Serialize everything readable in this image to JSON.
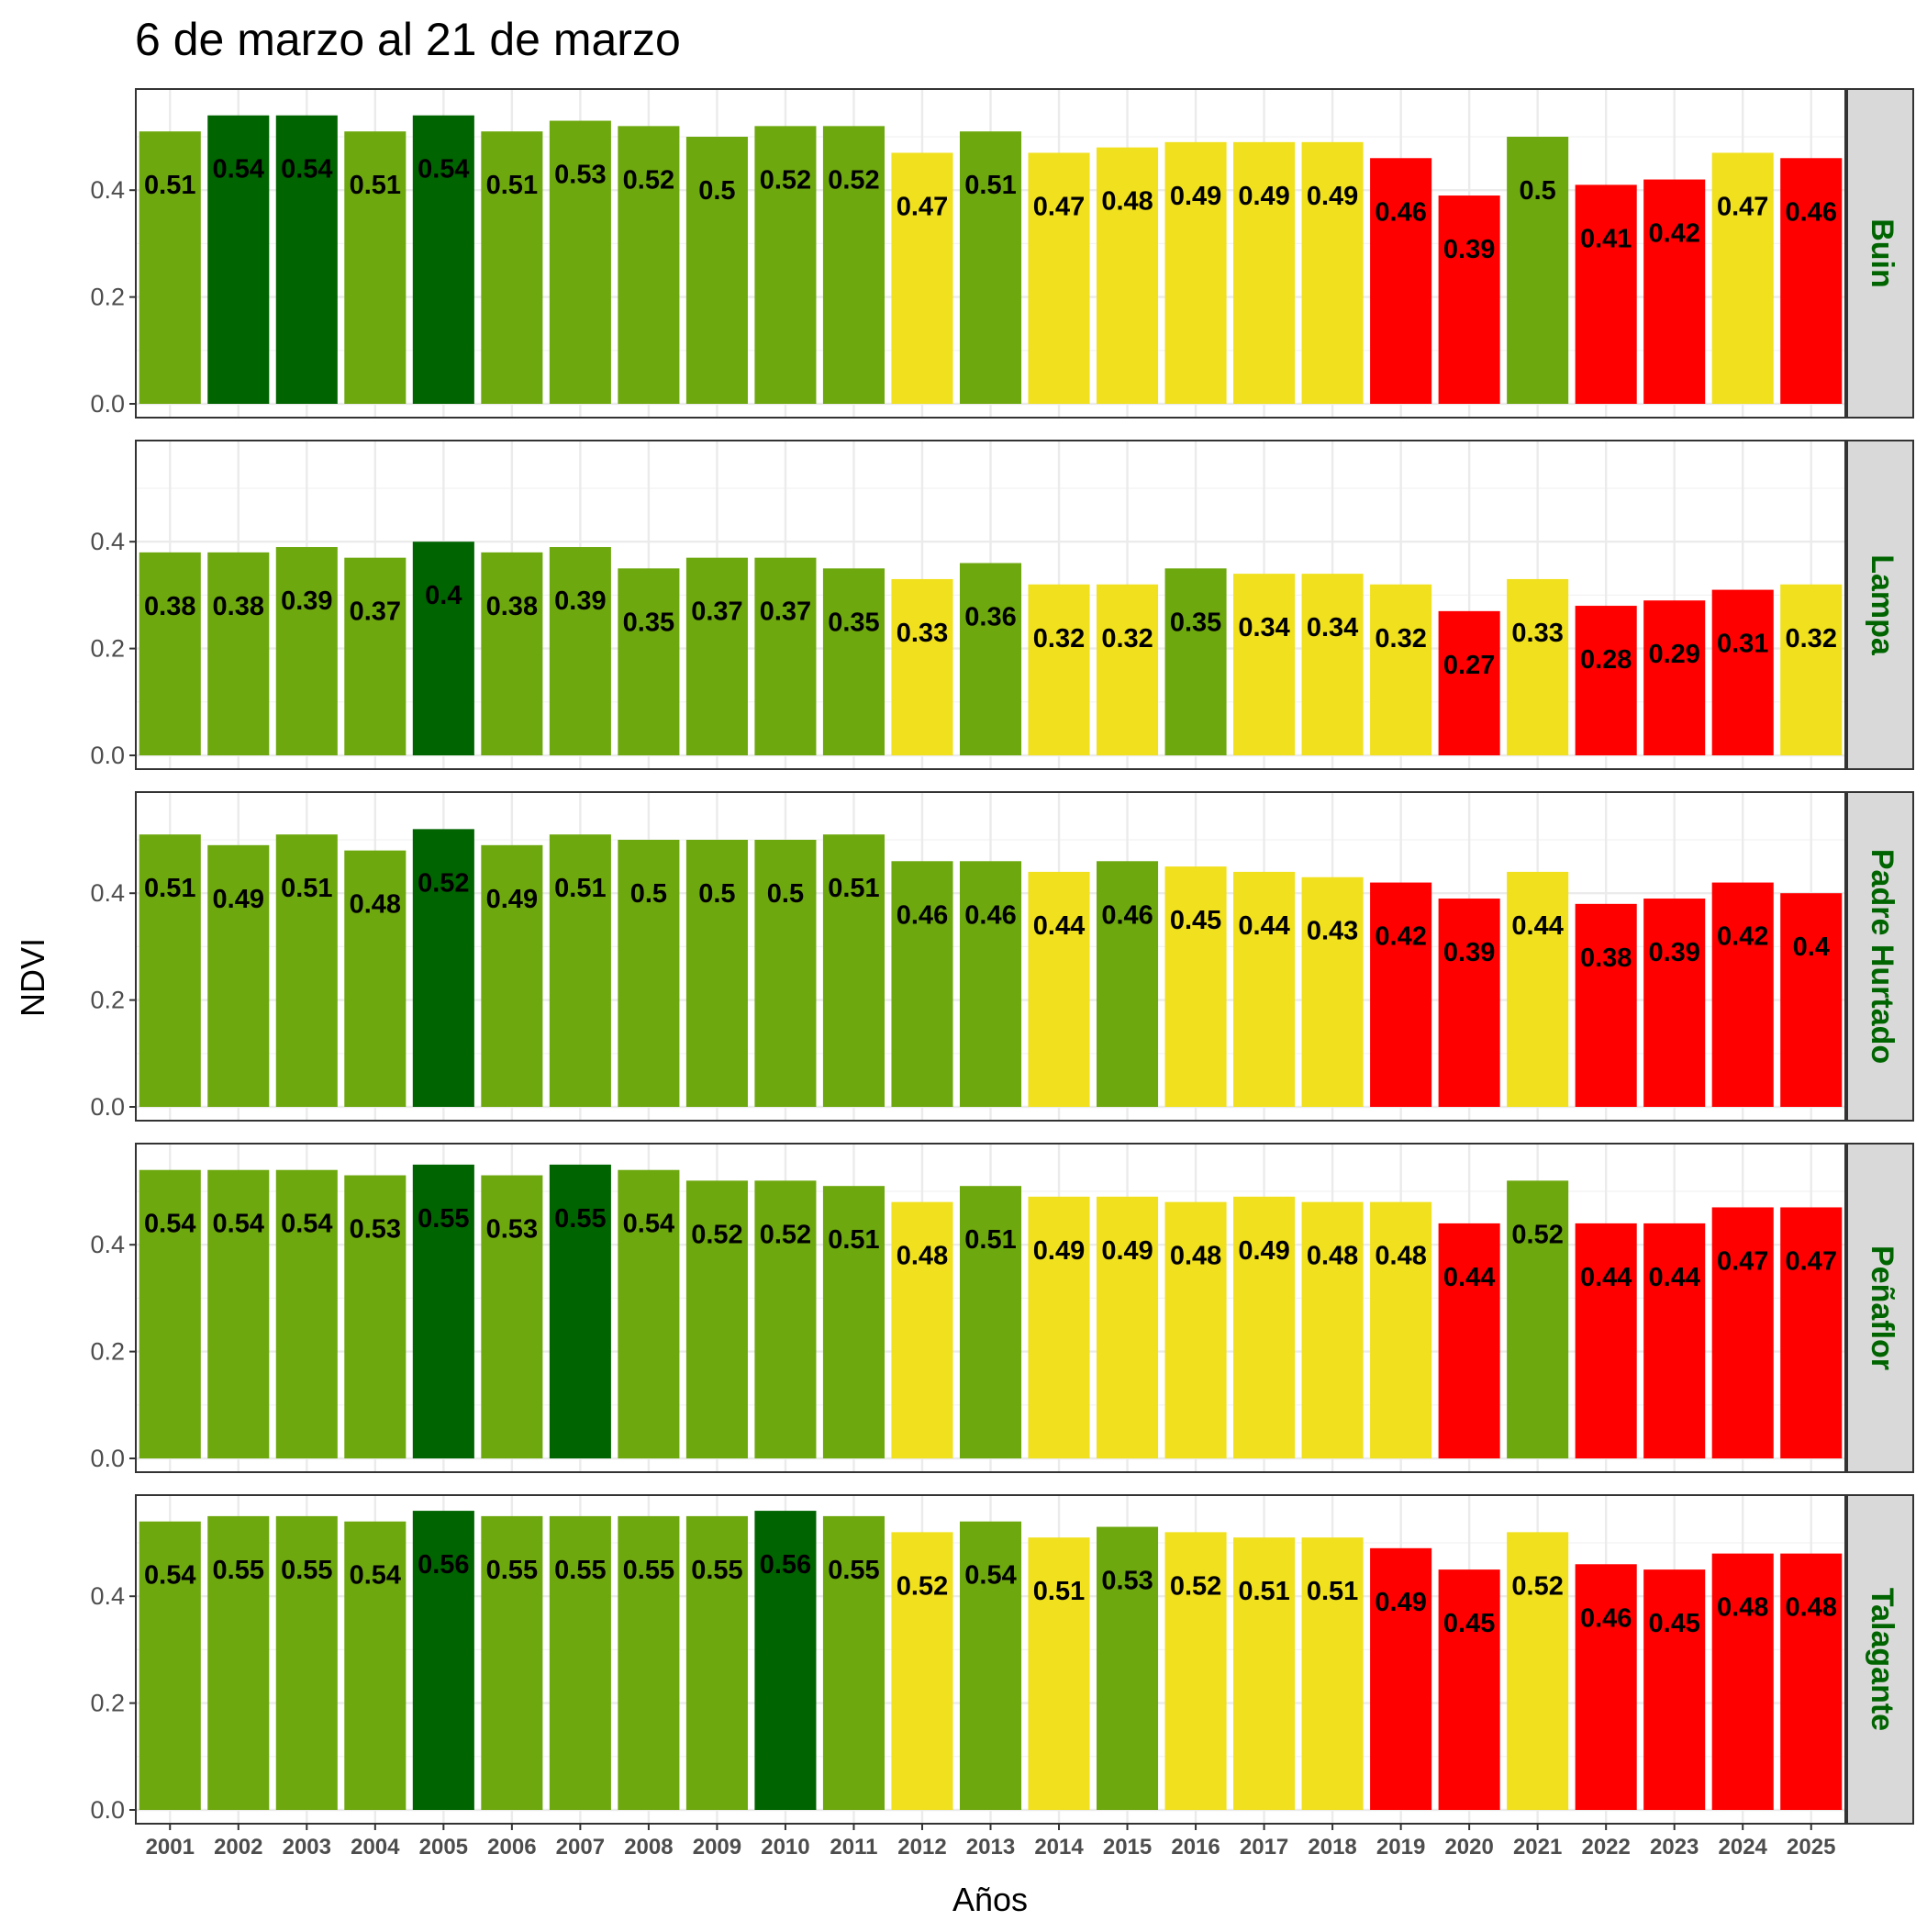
{
  "chart_data": {
    "type": "bar",
    "title": "6 de marzo al 21 de marzo",
    "xlabel": "Años",
    "ylabel": "NDVI",
    "ylim": [
      0,
      0.58
    ],
    "y_ticks": [
      "0.0",
      "0.2",
      "0.4"
    ],
    "grid": true,
    "categories": [
      "2001",
      "2002",
      "2003",
      "2004",
      "2005",
      "2006",
      "2007",
      "2008",
      "2009",
      "2010",
      "2011",
      "2012",
      "2013",
      "2014",
      "2015",
      "2016",
      "2017",
      "2018",
      "2019",
      "2020",
      "2021",
      "2022",
      "2023",
      "2024",
      "2025"
    ],
    "colors": {
      "G": "#006400",
      "L": "#6ea80f",
      "Y": "#f0e01e",
      "R": "#ff0000",
      "strip_bg": "#d9d9d9",
      "strip_text": "#006400"
    },
    "panels": [
      {
        "name": "Buin",
        "values": [
          0.51,
          0.54,
          0.54,
          0.51,
          0.54,
          0.51,
          0.53,
          0.52,
          0.5,
          0.52,
          0.52,
          0.47,
          0.51,
          0.47,
          0.48,
          0.49,
          0.49,
          0.49,
          0.46,
          0.39,
          0.5,
          0.41,
          0.42,
          0.47,
          0.46
        ],
        "color_class": [
          "L",
          "G",
          "G",
          "L",
          "G",
          "L",
          "L",
          "L",
          "L",
          "L",
          "L",
          "Y",
          "L",
          "Y",
          "Y",
          "Y",
          "Y",
          "Y",
          "R",
          "R",
          "L",
          "R",
          "R",
          "Y",
          "R"
        ]
      },
      {
        "name": "Lampa",
        "values": [
          0.38,
          0.38,
          0.39,
          0.37,
          0.4,
          0.38,
          0.39,
          0.35,
          0.37,
          0.37,
          0.35,
          0.33,
          0.36,
          0.32,
          0.32,
          0.35,
          0.34,
          0.34,
          0.32,
          0.27,
          0.33,
          0.28,
          0.29,
          0.31,
          0.32
        ],
        "color_class": [
          "L",
          "L",
          "L",
          "L",
          "G",
          "L",
          "L",
          "L",
          "L",
          "L",
          "L",
          "Y",
          "L",
          "Y",
          "Y",
          "L",
          "Y",
          "Y",
          "Y",
          "R",
          "Y",
          "R",
          "R",
          "R",
          "Y"
        ]
      },
      {
        "name": "Padre Hurtado",
        "values": [
          0.51,
          0.49,
          0.51,
          0.48,
          0.52,
          0.49,
          0.51,
          0.5,
          0.5,
          0.5,
          0.51,
          0.46,
          0.46,
          0.44,
          0.46,
          0.45,
          0.44,
          0.43,
          0.42,
          0.39,
          0.44,
          0.38,
          0.39,
          0.42,
          0.4
        ],
        "color_class": [
          "L",
          "L",
          "L",
          "L",
          "G",
          "L",
          "L",
          "L",
          "L",
          "L",
          "L",
          "L",
          "L",
          "Y",
          "L",
          "Y",
          "Y",
          "Y",
          "R",
          "R",
          "Y",
          "R",
          "R",
          "R",
          "R"
        ]
      },
      {
        "name": "Peñaflor",
        "values": [
          0.54,
          0.54,
          0.54,
          0.53,
          0.55,
          0.53,
          0.55,
          0.54,
          0.52,
          0.52,
          0.51,
          0.48,
          0.51,
          0.49,
          0.49,
          0.48,
          0.49,
          0.48,
          0.48,
          0.44,
          0.52,
          0.44,
          0.44,
          0.47,
          0.47
        ],
        "color_class": [
          "L",
          "L",
          "L",
          "L",
          "G",
          "L",
          "G",
          "L",
          "L",
          "L",
          "L",
          "Y",
          "L",
          "Y",
          "Y",
          "Y",
          "Y",
          "Y",
          "Y",
          "R",
          "L",
          "R",
          "R",
          "R",
          "R"
        ]
      },
      {
        "name": "Talagante",
        "values": [
          0.54,
          0.55,
          0.55,
          0.54,
          0.56,
          0.55,
          0.55,
          0.55,
          0.55,
          0.56,
          0.55,
          0.52,
          0.54,
          0.51,
          0.53,
          0.52,
          0.51,
          0.51,
          0.49,
          0.45,
          0.52,
          0.46,
          0.45,
          0.48,
          0.48
        ],
        "color_class": [
          "L",
          "L",
          "L",
          "L",
          "G",
          "L",
          "L",
          "L",
          "L",
          "G",
          "L",
          "Y",
          "L",
          "Y",
          "L",
          "Y",
          "Y",
          "Y",
          "R",
          "R",
          "Y",
          "R",
          "R",
          "R",
          "R"
        ]
      }
    ]
  }
}
